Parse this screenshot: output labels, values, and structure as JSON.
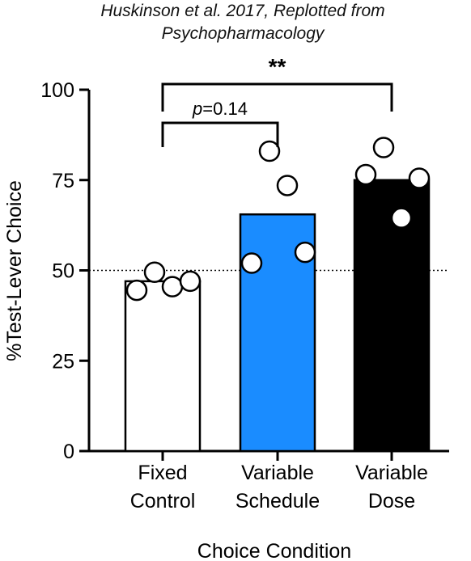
{
  "chart_data": {
    "type": "bar",
    "title": "Huskinson et al. 2017, Replotted from",
    "subtitle": "Psychopharmacology",
    "xlabel": "Choice Condition",
    "ylabel": "%Test-Lever Choice",
    "ylim": [
      0,
      100
    ],
    "yticks": [
      0,
      25,
      50,
      75,
      100
    ],
    "grid": false,
    "reference_line": {
      "y": 50,
      "style": "dotted"
    },
    "categories": [
      {
        "line1": "Fixed",
        "line2": "Control",
        "value": 47,
        "color": "#ffffff",
        "points": [
          44.5,
          49.5,
          45.5,
          47
        ]
      },
      {
        "line1": "Variable",
        "line2": "Schedule",
        "value": 65.5,
        "color": "#1a8cff",
        "points": [
          52,
          83,
          73.5,
          55
        ]
      },
      {
        "line1": "Variable",
        "line2": "Dose",
        "value": 75,
        "color": "#000000",
        "points": [
          76.5,
          84,
          64.5,
          75.5
        ]
      }
    ],
    "comparisons": [
      {
        "from": 0,
        "to": 1,
        "label_prefix": "p",
        "label_value": "=0.14",
        "level": 1
      },
      {
        "from": 0,
        "to": 2,
        "label": "**",
        "level": 2
      }
    ]
  }
}
